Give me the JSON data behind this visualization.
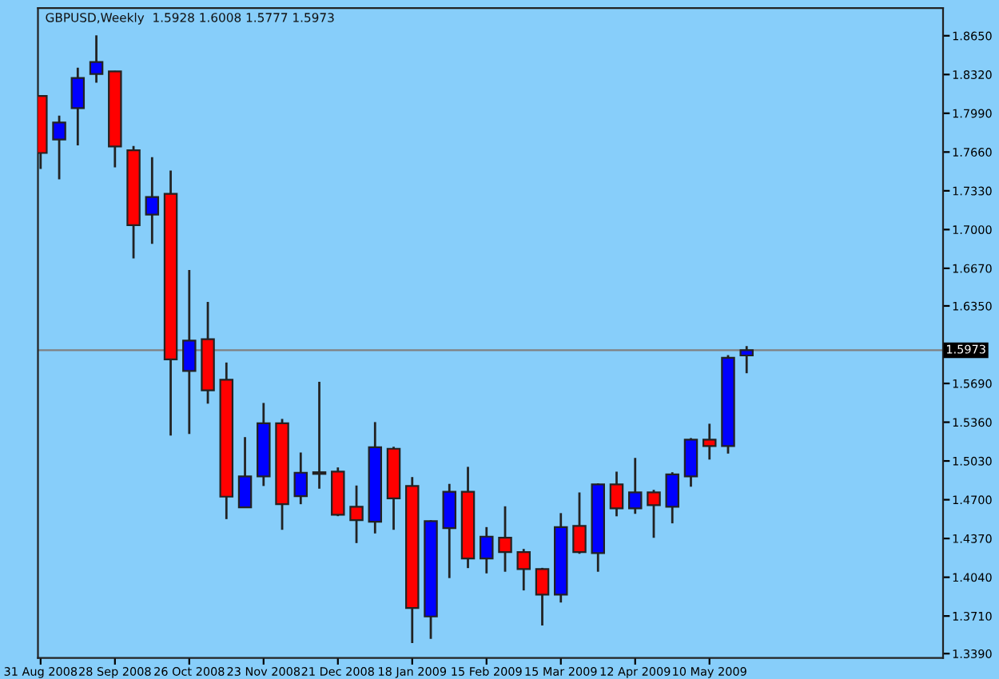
{
  "chart_data": {
    "type": "candlestick",
    "title": "GBPUSD,Weekly  1.5928 1.6008 1.5777 1.5973",
    "x": [
      "2008-08-31",
      "2008-09-07",
      "2008-09-14",
      "2008-09-21",
      "2008-09-28",
      "2008-10-05",
      "2008-10-12",
      "2008-10-19",
      "2008-10-26",
      "2008-11-02",
      "2008-11-09",
      "2008-11-16",
      "2008-11-23",
      "2008-11-30",
      "2008-12-07",
      "2008-12-14",
      "2008-12-21",
      "2008-12-28",
      "2009-01-04",
      "2009-01-11",
      "2009-01-18",
      "2009-01-25",
      "2009-02-01",
      "2009-02-08",
      "2009-02-15",
      "2009-02-22",
      "2009-03-01",
      "2009-03-08",
      "2009-03-15",
      "2009-03-22",
      "2009-03-29",
      "2009-04-05",
      "2009-04-12",
      "2009-04-19",
      "2009-04-26",
      "2009-05-03",
      "2009-05-10",
      "2009-05-17",
      "2009-05-24"
    ],
    "ohlc": [
      [
        1.8138,
        1.8138,
        1.7516,
        1.7652
      ],
      [
        1.7767,
        1.797,
        1.7427,
        1.7911
      ],
      [
        1.8033,
        1.8378,
        1.7716,
        1.8291
      ],
      [
        1.8324,
        1.8654,
        1.825,
        1.8427
      ],
      [
        1.8346,
        1.835,
        1.753,
        1.7707
      ],
      [
        1.7675,
        1.7712,
        1.6755,
        1.7037
      ],
      [
        1.7128,
        1.7617,
        1.6878,
        1.7277
      ],
      [
        1.7304,
        1.7503,
        1.5246,
        1.5895
      ],
      [
        1.5796,
        1.6656,
        1.526,
        1.6054
      ],
      [
        1.6067,
        1.6384,
        1.5518,
        1.5632
      ],
      [
        1.5722,
        1.5868,
        1.4535,
        1.4726
      ],
      [
        1.4635,
        1.5233,
        1.4635,
        1.4898
      ],
      [
        1.4898,
        1.5524,
        1.4817,
        1.5351
      ],
      [
        1.5351,
        1.5388,
        1.4444,
        1.4662
      ],
      [
        1.473,
        1.5102,
        1.4662,
        1.493
      ],
      [
        1.4934,
        1.5704,
        1.4794,
        1.492
      ],
      [
        1.4939,
        1.4975,
        1.456,
        1.4572
      ],
      [
        1.464,
        1.4821,
        1.4331,
        1.4526
      ],
      [
        1.4512,
        1.5361,
        1.4413,
        1.5147
      ],
      [
        1.5134,
        1.5151,
        1.4444,
        1.4712
      ],
      [
        1.4817,
        1.4893,
        1.3479,
        1.3778
      ],
      [
        1.3706,
        1.4525,
        1.3516,
        1.4518
      ],
      [
        1.4458,
        1.4835,
        1.4033,
        1.4767
      ],
      [
        1.4767,
        1.498,
        1.4118,
        1.42
      ],
      [
        1.42,
        1.4467,
        1.4073,
        1.4386
      ],
      [
        1.4376,
        1.4644,
        1.4087,
        1.4254
      ],
      [
        1.4254,
        1.4281,
        1.3928,
        1.411
      ],
      [
        1.411,
        1.412,
        1.3629,
        1.3892
      ],
      [
        1.3892,
        1.4586,
        1.3825,
        1.4467
      ],
      [
        1.4477,
        1.4762,
        1.424,
        1.4254
      ],
      [
        1.4246,
        1.4839,
        1.4087,
        1.483
      ],
      [
        1.483,
        1.4939,
        1.4559,
        1.4627
      ],
      [
        1.4627,
        1.5056,
        1.458,
        1.4762
      ],
      [
        1.4762,
        1.4784,
        1.4376,
        1.4654
      ],
      [
        1.464,
        1.4934,
        1.4499,
        1.4916
      ],
      [
        1.4898,
        1.5225,
        1.4811,
        1.5211
      ],
      [
        1.5211,
        1.5347,
        1.5042,
        1.5157
      ],
      [
        1.5157,
        1.5931,
        1.5093,
        1.5908
      ],
      [
        1.5928,
        1.6008,
        1.5777,
        1.5973
      ]
    ],
    "colors": [
      "#ff0000",
      "#0000ff",
      "#0000ff",
      "#0000ff",
      "#ff0000",
      "#ff0000",
      "#0000ff",
      "#ff0000",
      "#0000ff",
      "#ff0000",
      "#ff0000",
      "#0000ff",
      "#0000ff",
      "#ff0000",
      "#0000ff",
      "#ff0000",
      "#ff0000",
      "#ff0000",
      "#0000ff",
      "#ff0000",
      "#ff0000",
      "#0000ff",
      "#0000ff",
      "#ff0000",
      "#0000ff",
      "#ff0000",
      "#ff0000",
      "#ff0000",
      "#0000ff",
      "#ff0000",
      "#0000ff",
      "#ff0000",
      "#0000ff",
      "#ff0000",
      "#0000ff",
      "#0000ff",
      "#ff0000",
      "#0000ff",
      "#0000ff"
    ],
    "xlim": [
      "2008-08-30",
      "2009-08-06"
    ],
    "xticks": [
      {
        "value": "2008-08-31",
        "label": "31 Aug 2008"
      },
      {
        "value": "2008-09-28",
        "label": "28 Sep 2008"
      },
      {
        "value": "2008-10-26",
        "label": "26 Oct 2008"
      },
      {
        "value": "2008-11-23",
        "label": "23 Nov 2008"
      },
      {
        "value": "2008-12-21",
        "label": "21 Dec 2008"
      },
      {
        "value": "2009-01-18",
        "label": "18 Jan 2009"
      },
      {
        "value": "2009-02-15",
        "label": "15 Feb 2009"
      },
      {
        "value": "2009-03-15",
        "label": "15 Mar 2009"
      },
      {
        "value": "2009-04-12",
        "label": "12 Apr 2009"
      },
      {
        "value": "2009-05-10",
        "label": "10 May 2009"
      }
    ],
    "ylim": [
      1.3353,
      1.8885
    ],
    "yticks": [
      {
        "value": 1.865,
        "label": "1.8650"
      },
      {
        "value": 1.832,
        "label": "1.8320"
      },
      {
        "value": 1.799,
        "label": "1.7990"
      },
      {
        "value": 1.766,
        "label": "1.7660"
      },
      {
        "value": 1.733,
        "label": "1.7330"
      },
      {
        "value": 1.7,
        "label": "1.7000"
      },
      {
        "value": 1.667,
        "label": "1.6670"
      },
      {
        "value": 1.635,
        "label": "1.6350"
      },
      {
        "value": 1.569,
        "label": "1.5690"
      },
      {
        "value": 1.536,
        "label": "1.5360"
      },
      {
        "value": 1.503,
        "label": "1.5030"
      },
      {
        "value": 1.47,
        "label": "1.4700"
      },
      {
        "value": 1.437,
        "label": "1.4370"
      },
      {
        "value": 1.404,
        "label": "1.4040"
      },
      {
        "value": 1.371,
        "label": "1.3710"
      },
      {
        "value": 1.339,
        "label": "1.3390"
      }
    ],
    "ref_lines": [
      {
        "axis": "y",
        "value": 1.5973,
        "label": "1.5973",
        "color": "#808080"
      }
    ],
    "grid": false,
    "legend": false
  }
}
